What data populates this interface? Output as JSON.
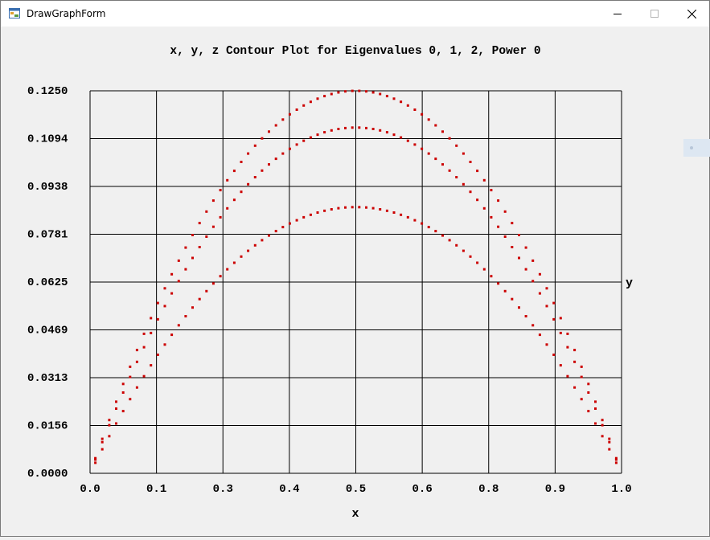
{
  "window": {
    "title": "DrawGraphForm",
    "controls": [
      "minimize",
      "maximize",
      "close"
    ]
  },
  "chart_data": {
    "type": "scatter",
    "title": "x, y, z Contour Plot for Eigenvalues 0, 1, 2, Power 0",
    "xlabel": "x",
    "ylabel": "y",
    "xlim": [
      0.0,
      1.0
    ],
    "ylim": [
      0.0,
      0.125
    ],
    "x_ticks": [
      "0.0",
      "0.1",
      "0.3",
      "0.4",
      "0.5",
      "0.6",
      "0.8",
      "0.9",
      "1.0"
    ],
    "y_ticks": [
      "0.1250",
      "0.1094",
      "0.0938",
      "0.0781",
      "0.0625",
      "0.0469",
      "0.0313",
      "0.0156",
      "0.0000"
    ],
    "grid": true,
    "marker_color": "#cc0000",
    "series": [
      {
        "peak_y": 0.125,
        "x_start": 0.01,
        "x_end": 0.99,
        "n": 76
      },
      {
        "peak_y": 0.113,
        "x_start": 0.01,
        "x_end": 0.99,
        "n": 76
      },
      {
        "peak_y": 0.087,
        "x_start": 0.01,
        "x_end": 0.99,
        "n": 76
      }
    ]
  }
}
